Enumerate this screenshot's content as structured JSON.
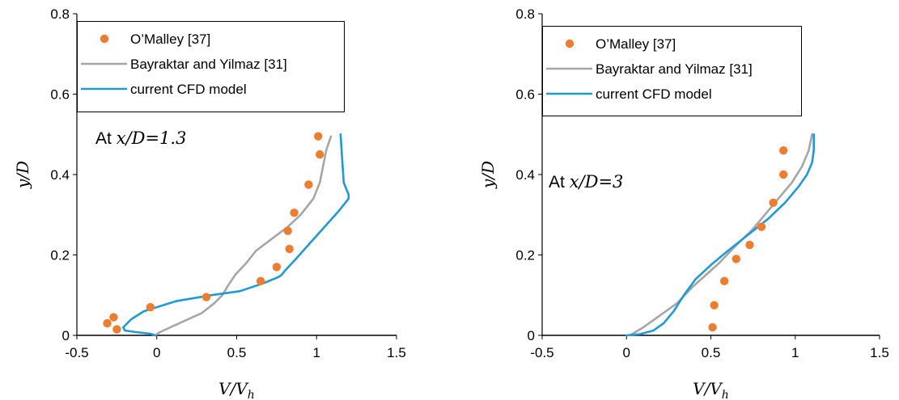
{
  "chart_data": [
    {
      "type": "scatter",
      "xlabel_main": "V/V",
      "xlabel_sub": "h",
      "ylabel": "y/D",
      "xlim": [
        -0.5,
        1.5
      ],
      "ylim": [
        0,
        0.8
      ],
      "xticks": [
        "-0.5",
        "0",
        "0.5",
        "1",
        "1.5"
      ],
      "yticks": [
        "0",
        "0.2",
        "0.4",
        "0.6",
        "0.8"
      ],
      "annotation_prefix": "At ",
      "annotation_math": "x/D=1.3",
      "legend_position": "top-left",
      "series": [
        {
          "name": "O’Malley [37]",
          "kind": "markers",
          "color": "#ED7D31",
          "x": [
            1.01,
            1.02,
            0.95,
            0.86,
            0.82,
            0.83,
            0.75,
            0.65,
            0.31,
            -0.04,
            -0.27,
            -0.31,
            -0.25
          ],
          "y": [
            0.495,
            0.45,
            0.375,
            0.305,
            0.26,
            0.215,
            0.17,
            0.135,
            0.095,
            0.07,
            0.045,
            0.03,
            0.015
          ]
        },
        {
          "name": "Bayraktar and Yilmaz [31]",
          "kind": "line",
          "color": "#A6A6A6",
          "x": [
            1.09,
            1.06,
            1.04,
            1.02,
            0.98,
            0.9,
            0.82,
            0.72,
            0.62,
            0.56,
            0.49,
            0.44,
            0.41,
            0.36,
            0.28,
            0.14,
            0.02,
            -0.01
          ],
          "y": [
            0.495,
            0.46,
            0.42,
            0.38,
            0.34,
            0.3,
            0.27,
            0.24,
            0.21,
            0.18,
            0.15,
            0.12,
            0.1,
            0.08,
            0.055,
            0.03,
            0.008,
            0.0
          ]
        },
        {
          "name": "current CFD model",
          "kind": "line",
          "color": "#1F9AD6",
          "x": [
            1.15,
            1.16,
            1.17,
            1.2,
            1.2,
            1.14,
            1.05,
            0.96,
            0.87,
            0.8,
            0.78,
            0.76,
            0.67,
            0.52,
            0.34,
            0.12,
            -0.08,
            -0.16,
            -0.21,
            -0.2,
            -0.13,
            -0.04,
            -0.01
          ],
          "y": [
            0.5,
            0.44,
            0.38,
            0.35,
            0.34,
            0.31,
            0.27,
            0.23,
            0.19,
            0.16,
            0.15,
            0.145,
            0.13,
            0.11,
            0.1,
            0.085,
            0.06,
            0.04,
            0.02,
            0.012,
            0.008,
            0.004,
            0.0
          ]
        }
      ]
    },
    {
      "type": "scatter",
      "xlabel_main": "V/V",
      "xlabel_sub": "h",
      "ylabel": "y/D",
      "xlim": [
        -0.5,
        1.5
      ],
      "ylim": [
        0,
        0.8
      ],
      "xticks": [
        "-0.5",
        "0",
        "0.5",
        "1",
        "1.5"
      ],
      "yticks": [
        "0",
        "0.2",
        "0.4",
        "0.6",
        "0.8"
      ],
      "annotation_prefix": "At ",
      "annotation_math": "x/D=3",
      "legend_position": "top-left",
      "series": [
        {
          "name": "O’Malley [37]",
          "kind": "markers",
          "color": "#ED7D31",
          "x": [
            0.93,
            0.93,
            0.87,
            0.8,
            0.73,
            0.65,
            0.58,
            0.52,
            0.51
          ],
          "y": [
            0.46,
            0.4,
            0.33,
            0.27,
            0.225,
            0.19,
            0.135,
            0.075,
            0.02
          ]
        },
        {
          "name": "Bayraktar and Yilmaz [31]",
          "kind": "line",
          "color": "#A6A6A6",
          "x": [
            1.1,
            1.08,
            1.04,
            0.98,
            0.9,
            0.82,
            0.74,
            0.64,
            0.55,
            0.47,
            0.39,
            0.3,
            0.2,
            0.1,
            0.02
          ],
          "y": [
            0.5,
            0.46,
            0.42,
            0.38,
            0.34,
            0.3,
            0.26,
            0.22,
            0.18,
            0.15,
            0.12,
            0.08,
            0.05,
            0.02,
            0.0
          ]
        },
        {
          "name": "current CFD model",
          "kind": "line",
          "color": "#1F9AD6",
          "x": [
            1.11,
            1.11,
            1.1,
            1.07,
            1.02,
            0.94,
            0.84,
            0.72,
            0.6,
            0.5,
            0.41,
            0.34,
            0.28,
            0.22,
            0.16,
            0.08,
            0.0
          ],
          "y": [
            0.5,
            0.46,
            0.43,
            0.4,
            0.37,
            0.33,
            0.29,
            0.25,
            0.21,
            0.175,
            0.14,
            0.1,
            0.06,
            0.03,
            0.012,
            0.003,
            0.0
          ]
        }
      ]
    }
  ]
}
